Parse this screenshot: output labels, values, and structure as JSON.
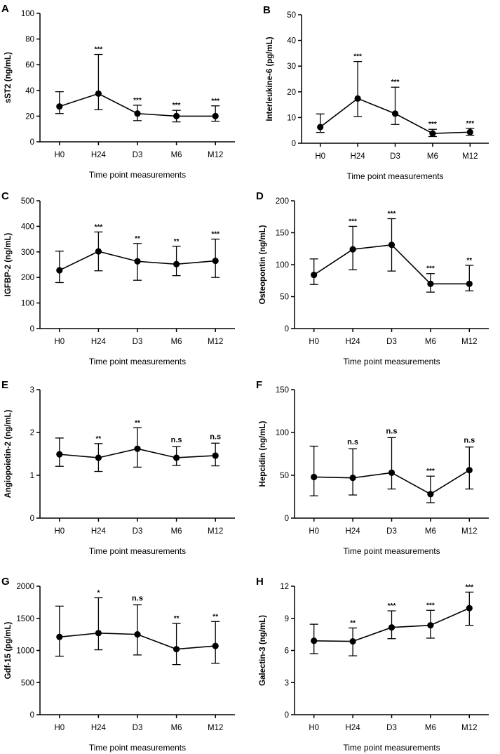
{
  "chart_data": [
    {
      "panel": "A",
      "type": "line",
      "categories": [
        "H0",
        "H24",
        "D3",
        "M6",
        "M12"
      ],
      "ylabel": "sST2 (ng/mL)",
      "xlabel": "Time point measurements",
      "ylim": [
        0,
        100
      ],
      "yticks": [
        0,
        20,
        40,
        60,
        80,
        100
      ],
      "values": [
        27.5,
        37.5,
        22,
        20,
        20
      ],
      "err_low": [
        22,
        25,
        16.5,
        15.5,
        16
      ],
      "err_high": [
        39,
        68,
        28.5,
        24.5,
        28
      ],
      "sig": [
        "",
        "***",
        "***",
        "***",
        "***"
      ]
    },
    {
      "panel": "B",
      "type": "line",
      "categories": [
        "H0",
        "H24",
        "D3",
        "M6",
        "M12"
      ],
      "ylabel": "Interleukine-6 (pg/mL)",
      "xlabel": "Time point measurements",
      "ylim": [
        0,
        50
      ],
      "yticks": [
        0,
        10,
        20,
        30,
        40,
        50
      ],
      "values": [
        6.3,
        17.4,
        11.5,
        3.8,
        4.3
      ],
      "err_low": [
        4.2,
        10.4,
        7.3,
        2.6,
        3.1
      ],
      "err_high": [
        11.4,
        31.8,
        21.8,
        5.4,
        5.8
      ],
      "sig": [
        "",
        "***",
        "***",
        "***",
        "***"
      ]
    },
    {
      "panel": "C",
      "type": "line",
      "categories": [
        "H0",
        "H24",
        "D3",
        "M6",
        "M12"
      ],
      "ylabel": "IGFBP-2 (ng/mL)",
      "xlabel": "Time point measurements",
      "ylim": [
        0,
        500
      ],
      "yticks": [
        0,
        100,
        200,
        300,
        400,
        500
      ],
      "values": [
        228,
        302,
        263,
        252,
        265
      ],
      "err_low": [
        180,
        226,
        189,
        207,
        200
      ],
      "err_high": [
        303,
        378,
        333,
        322,
        350
      ],
      "sig": [
        "",
        "***",
        "**",
        "**",
        "***"
      ]
    },
    {
      "panel": "D",
      "type": "line",
      "categories": [
        "H0",
        "H24",
        "D3",
        "M6",
        "M12"
      ],
      "ylabel": "Osteopontin (ng/mL)",
      "xlabel": "Time point measurements",
      "ylim": [
        0,
        200
      ],
      "yticks": [
        0,
        50,
        100,
        150,
        200
      ],
      "values": [
        84,
        124,
        131,
        70,
        70
      ],
      "err_low": [
        69,
        92,
        90,
        57,
        59
      ],
      "err_high": [
        109,
        160,
        172,
        86,
        99
      ],
      "sig": [
        "",
        "***",
        "***",
        "***",
        "**"
      ]
    },
    {
      "panel": "E",
      "type": "line",
      "categories": [
        "H0",
        "H24",
        "D3",
        "M6",
        "M12"
      ],
      "ylabel": "Angiopoietin-2 (ng/mL)",
      "xlabel": "Time point measurements",
      "ylim": [
        0,
        3
      ],
      "yticks": [
        0,
        1,
        2,
        3
      ],
      "values": [
        1.49,
        1.41,
        1.62,
        1.41,
        1.46
      ],
      "err_low": [
        1.21,
        1.09,
        1.19,
        1.23,
        1.22
      ],
      "err_high": [
        1.87,
        1.74,
        2.11,
        1.67,
        1.75
      ],
      "sig": [
        "",
        "**",
        "**",
        "n.s",
        "n.s"
      ]
    },
    {
      "panel": "F",
      "type": "line",
      "categories": [
        "H0",
        "H24",
        "D3",
        "M6",
        "M12"
      ],
      "ylabel": "Hepcidin (ng/mL)",
      "xlabel": "Time point measurements",
      "ylim": [
        0,
        150
      ],
      "yticks": [
        0,
        50,
        100,
        150
      ],
      "values": [
        48,
        47,
        53,
        28,
        56
      ],
      "err_low": [
        26,
        27,
        34,
        18,
        34
      ],
      "err_high": [
        84,
        81,
        94,
        49,
        83
      ],
      "sig": [
        "",
        "n.s",
        "n.s",
        "***",
        "n.s"
      ]
    },
    {
      "panel": "G",
      "type": "line",
      "categories": [
        "H0",
        "H24",
        "D3",
        "M6",
        "M12"
      ],
      "ylabel": "Gdf-15 (pg/mL)",
      "xlabel": "Time point measurements",
      "ylim": [
        0,
        2000
      ],
      "yticks": [
        0,
        500,
        1000,
        1500,
        2000
      ],
      "values": [
        1210,
        1270,
        1250,
        1020,
        1070
      ],
      "err_low": [
        910,
        1010,
        930,
        780,
        800
      ],
      "err_high": [
        1690,
        1820,
        1710,
        1420,
        1450
      ],
      "sig": [
        "",
        "*",
        "n.s",
        "**",
        "**"
      ]
    },
    {
      "panel": "H",
      "type": "line",
      "categories": [
        "H0",
        "H24",
        "D3",
        "M6",
        "M12"
      ],
      "ylabel": "Galectin-3 (ng/mL)",
      "xlabel": "Time point measurements",
      "ylim": [
        0,
        12
      ],
      "yticks": [
        0,
        3,
        6,
        9,
        12
      ],
      "values": [
        6.9,
        6.85,
        8.15,
        8.35,
        9.95
      ],
      "err_low": [
        5.7,
        5.5,
        7.1,
        7.15,
        8.35
      ],
      "err_high": [
        8.45,
        8.1,
        9.7,
        9.75,
        11.45
      ],
      "sig": [
        "",
        "**",
        "***",
        "***",
        "***"
      ]
    }
  ]
}
